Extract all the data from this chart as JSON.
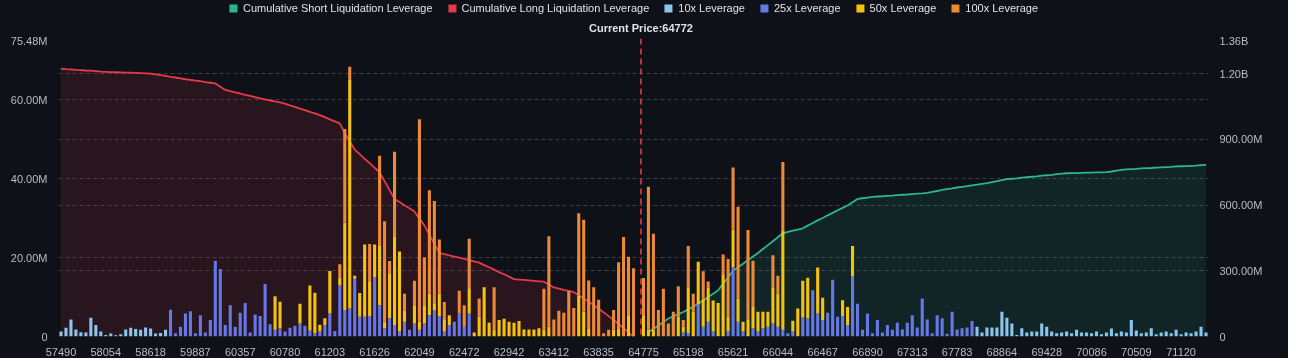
{
  "chart_data": {
    "type": "bar",
    "stacked": true,
    "grid": "y",
    "legend": "top",
    "categories": [
      "57490",
      null,
      null,
      null,
      null,
      null,
      null,
      null,
      null,
      "58054",
      null,
      null,
      null,
      null,
      null,
      null,
      null,
      null,
      "58618",
      null,
      null,
      null,
      null,
      null,
      null,
      null,
      null,
      "59887",
      null,
      null,
      null,
      null,
      null,
      null,
      null,
      null,
      "60357",
      null,
      null,
      null,
      null,
      null,
      null,
      null,
      null,
      "60780",
      null,
      null,
      null,
      null,
      null,
      null,
      null,
      null,
      "61203",
      null,
      null,
      null,
      null,
      null,
      null,
      null,
      null,
      "61626",
      null,
      null,
      null,
      null,
      null,
      null,
      null,
      null,
      "62049",
      null,
      null,
      null,
      null,
      null,
      null,
      null,
      null,
      "62472",
      null,
      null,
      null,
      null,
      null,
      null,
      null,
      null,
      "62942",
      null,
      null,
      null,
      null,
      null,
      null,
      null,
      null,
      "63412",
      null,
      null,
      null,
      null,
      null,
      null,
      null,
      null,
      "63835",
      null,
      null,
      null,
      null,
      null,
      null,
      null,
      null,
      "64775",
      null,
      null,
      null,
      null,
      null,
      null,
      null,
      null,
      "65198",
      null,
      null,
      null,
      null,
      null,
      null,
      null,
      null,
      "65621",
      null,
      null,
      null,
      null,
      null,
      null,
      null,
      null,
      "66044",
      null,
      null,
      null,
      null,
      null,
      null,
      null,
      null,
      "66467",
      null,
      null,
      null,
      null,
      null,
      null,
      null,
      null,
      "66890",
      null,
      null,
      null,
      null,
      null,
      null,
      null,
      null,
      "67313",
      null,
      null,
      null,
      null,
      null,
      null,
      null,
      null,
      "67783",
      null,
      null,
      null,
      null,
      null,
      null,
      null,
      null,
      "68864",
      null,
      null,
      null,
      null,
      null,
      null,
      null,
      null,
      "69428",
      null,
      null,
      null,
      null,
      null,
      null,
      null,
      null,
      "70086",
      null,
      null,
      null,
      null,
      null,
      null,
      null,
      null,
      "70509",
      null,
      null,
      null,
      null,
      null,
      null,
      null,
      null,
      "71120",
      null,
      null,
      null,
      null,
      null
    ],
    "ylim": [
      0,
      75.48
    ],
    "yticks": [
      {
        "value": 0,
        "label": "0"
      },
      {
        "value": 20,
        "label": "20.00M"
      },
      {
        "value": 40,
        "label": "40.00M"
      },
      {
        "value": 60,
        "label": "60.00M"
      },
      {
        "value": 75.48,
        "label": "75.48M"
      }
    ],
    "y2lim": [
      0,
      1360000000.0
    ],
    "y2ticks": [
      {
        "value": 0,
        "label": "0"
      },
      {
        "value": 300000000.0,
        "label": "300.00M"
      },
      {
        "value": 600000000.0,
        "label": "600.00M"
      },
      {
        "value": 900000000.0,
        "label": "900.00M"
      },
      {
        "value": 1200000000.0,
        "label": "1.20B"
      },
      {
        "value": 1360000000.0,
        "label": "1.36B"
      }
    ],
    "annotations": [
      "Current Price:64772"
    ],
    "series": [
      {
        "name": "Cumulative Short Liquidation Leverage",
        "type": "area",
        "axis": "y2",
        "color": "#2bb596",
        "values": [
          null,
          null,
          null,
          null,
          null,
          null,
          null,
          null,
          null,
          null,
          null,
          null,
          null,
          null,
          null,
          null,
          null,
          null,
          null,
          null,
          null,
          null,
          null,
          null,
          null,
          null,
          null,
          null,
          null,
          null,
          null,
          null,
          null,
          null,
          null,
          null,
          null,
          null,
          null,
          null,
          null,
          null,
          null,
          null,
          null,
          null,
          null,
          null,
          null,
          null,
          null,
          null,
          null,
          null,
          null,
          null,
          null,
          null,
          null,
          null,
          null,
          null,
          null,
          null,
          null,
          null,
          null,
          null,
          null,
          null,
          null,
          null,
          null,
          null,
          null,
          null,
          null,
          null,
          null,
          null,
          null,
          null,
          null,
          null,
          null,
          null,
          null,
          null,
          null,
          null,
          null,
          null,
          null,
          null,
          null,
          null,
          null,
          null,
          null,
          null,
          null,
          null,
          null,
          null,
          null,
          null,
          null,
          null,
          null,
          null,
          null,
          null,
          null,
          null,
          null,
          null,
          null,
          null,
          20000000.0,
          35000000.0,
          50000000.0,
          66000000.0,
          82000000.0,
          92000000.0,
          102000000.0,
          112000000.0,
          124000000.0,
          137000000.0,
          149000000.0,
          164000000.0,
          180000000.0,
          195000000.0,
          211000000.0,
          241000000.0,
          270000000.0,
          300000000.0,
          316000000.0,
          332000000.0,
          349000000.0,
          365000000.0,
          381000000.0,
          399000000.0,
          417000000.0,
          435000000.0,
          453000000.0,
          471000000.0,
          477000000.0,
          483000000.0,
          488000000.0,
          494000000.0,
          506000000.0,
          518000000.0,
          530000000.0,
          541000000.0,
          553000000.0,
          564000000.0,
          576000000.0,
          587000000.0,
          598000000.0,
          613000000.0,
          628000000.0,
          631000000.0,
          634000000.0,
          637000000.0,
          639000000.0,
          640000000.0,
          642000000.0,
          643000000.0,
          645000000.0,
          647000000.0,
          648000000.0,
          650000000.0,
          652000000.0,
          653000000.0,
          655000000.0,
          660000000.0,
          664000000.0,
          669000000.0,
          673000000.0,
          676000000.0,
          680000000.0,
          683000000.0,
          686000000.0,
          690000000.0,
          693000000.0,
          697000000.0,
          700000000.0,
          705000000.0,
          709000000.0,
          714000000.0,
          718000000.0,
          720000000.0,
          722000000.0,
          725000000.0,
          727000000.0,
          729000000.0,
          731000000.0,
          734000000.0,
          736000000.0,
          738000000.0,
          741000000.0,
          743000000.0,
          745000000.0,
          746000000.0,
          746000000.0,
          747000000.0,
          748000000.0,
          748000000.0,
          749000000.0,
          749000000.0,
          750000000.0,
          753000000.0,
          757000000.0,
          760000000.0,
          763000000.0,
          764000000.0,
          765000000.0,
          767000000.0,
          768000000.0,
          769000000.0,
          771000000.0,
          772000000.0,
          773000000.0,
          774000000.0,
          776000000.0,
          777000000.0,
          778000000.0,
          779000000.0,
          780000000.0,
          782000000.0,
          783000000.0
        ]
      },
      {
        "name": "Cumulative Long Liquidation Leverage",
        "type": "area",
        "axis": "y2",
        "color": "#e8394a",
        "values": [
          1222000000.0,
          1220000000.0,
          1219000000.0,
          1217000000.0,
          1216000000.0,
          1214000000.0,
          1213000000.0,
          1211000000.0,
          1209000000.0,
          1208000000.0,
          1207000000.0,
          1206000000.0,
          1205000000.0,
          1204000000.0,
          1204000000.0,
          1203000000.0,
          1202000000.0,
          1201000000.0,
          1200000000.0,
          1196000000.0,
          1193000000.0,
          1189000000.0,
          1185000000.0,
          1182000000.0,
          1178000000.0,
          1174000000.0,
          1171000000.0,
          1168000000.0,
          1165000000.0,
          1161000000.0,
          1158000000.0,
          1155000000.0,
          1140000000.0,
          1125000000.0,
          1120000000.0,
          1114000000.0,
          1109000000.0,
          1103000000.0,
          1098000000.0,
          1092000000.0,
          1087000000.0,
          1082000000.0,
          1077000000.0,
          1073000000.0,
          1068000000.0,
          1063000000.0,
          1055000000.0,
          1048000000.0,
          1040000000.0,
          1033000000.0,
          1025000000.0,
          1018000000.0,
          1010000000.0,
          1001000000.0,
          991000000.0,
          982000000.0,
          973000000.0,
          928000000.0,
          890000000.0,
          853000000.0,
          832000000.0,
          811000000.0,
          791000000.0,
          770000000.0,
          749000000.0,
          709000000.0,
          668000000.0,
          628000000.0,
          614000000.0,
          599000000.0,
          585000000.0,
          570000000.0,
          538000000.0,
          507000000.0,
          465000000.0,
          423000000.0,
          381000000.0,
          376000000.0,
          370000000.0,
          365000000.0,
          360000000.0,
          354000000.0,
          348000000.0,
          343000000.0,
          337000000.0,
          326000000.0,
          316000000.0,
          305000000.0,
          294000000.0,
          284000000.0,
          273000000.0,
          262000000.0,
          260000000.0,
          258000000.0,
          256000000.0,
          254000000.0,
          252000000.0,
          250000000.0,
          237000000.0,
          224000000.0,
          219000000.0,
          213000000.0,
          208000000.0,
          202000000.0,
          188000000.0,
          173000000.0,
          159000000.0,
          144000000.0,
          127000000.0,
          110000000.0,
          93000000.0,
          76000000.0,
          57000000.0,
          38000000.0,
          19000000.0,
          0,
          null,
          null,
          null,
          null,
          null,
          null,
          null,
          null,
          null,
          null,
          null,
          null,
          null,
          null,
          null,
          null,
          null,
          null,
          null,
          null,
          null,
          null,
          null,
          null,
          null,
          null,
          null,
          null,
          null,
          null,
          null,
          null,
          null,
          null,
          null,
          null,
          null,
          null,
          null,
          null,
          null,
          null,
          null,
          null,
          null,
          null,
          null,
          null,
          null,
          null,
          null,
          null,
          null,
          null,
          null,
          null,
          null,
          null,
          null,
          null,
          null,
          null,
          null,
          null,
          null,
          null,
          null,
          null,
          null,
          null,
          null,
          null,
          null,
          null,
          null,
          null,
          null,
          null,
          null,
          null,
          null,
          null,
          null,
          null,
          null,
          null,
          null,
          null,
          null,
          null,
          null,
          null,
          null,
          null,
          null,
          null,
          null,
          null,
          null,
          null,
          null,
          null,
          null,
          null,
          null,
          null,
          null,
          null,
          null,
          null,
          null,
          null,
          null,
          null,
          null
        ]
      },
      {
        "name": "10x Leverage",
        "color": "#8cc4ee",
        "values": [
          1.25,
          2.2,
          4.3,
          1.8,
          1.1,
          1.0,
          4.75,
          2.9,
          1.25,
          0.4,
          0.75,
          0.3,
          0.6,
          1.8,
          2.2,
          1.9,
          1.7,
          2.3,
          2.0,
          0.75,
          0.9,
          1.7,
          0,
          0,
          0,
          0,
          0,
          0,
          0,
          0,
          0,
          0,
          0,
          0,
          0,
          0,
          0,
          0,
          0,
          0,
          0,
          0,
          0,
          0,
          0,
          0,
          0,
          0,
          0,
          0,
          0,
          0,
          0,
          0,
          0,
          0,
          0,
          0,
          0,
          0,
          0,
          0,
          0,
          0,
          0,
          0,
          0,
          0,
          0,
          0,
          0,
          0,
          0,
          0,
          0,
          0,
          0,
          0,
          0,
          0,
          0,
          0,
          0,
          0,
          0,
          0,
          0,
          0,
          0,
          0,
          0,
          0,
          0,
          0,
          0,
          0,
          0,
          0,
          0,
          0,
          0,
          0,
          0,
          0,
          0,
          0,
          0,
          0,
          0,
          0,
          0,
          0,
          0,
          0,
          0,
          0,
          0,
          0,
          0,
          0,
          0,
          0,
          0,
          0,
          0,
          0,
          0,
          0,
          0,
          0,
          0,
          0,
          0,
          0,
          0,
          0,
          0,
          0,
          0,
          0,
          0,
          0,
          0,
          0,
          0,
          0,
          0,
          0,
          0,
          0,
          0,
          0,
          0,
          0,
          0,
          0,
          0,
          0,
          0,
          0,
          0,
          0,
          0,
          0,
          0,
          0,
          0,
          0,
          0,
          0,
          0,
          0,
          0,
          0,
          0,
          0,
          0,
          0,
          0,
          0,
          0,
          0,
          0,
          0,
          2.5,
          1.0,
          2.25,
          2.25,
          2.25,
          6.25,
          4.75,
          3.3,
          0.4,
          2.1,
          1.0,
          1.25,
          1.25,
          3.3,
          2.5,
          1.25,
          0.8,
          1.0,
          1.25,
          0.8,
          1.7,
          1.0,
          1.0,
          0.8,
          1.25,
          0.6,
          1.0,
          2.0,
          0.8,
          1.25,
          1.0,
          4.2,
          1.5,
          0.8,
          1.0,
          2.1,
          0.6,
          1.0,
          1.25,
          0.8,
          1.7,
          0.6,
          1.0,
          0.8,
          1.25,
          2.5,
          1.0
        ]
      },
      {
        "name": "25x Leverage",
        "color": "#6677e6",
        "values": [
          0,
          0,
          0,
          0,
          0,
          0,
          0,
          0,
          0,
          0,
          0,
          0,
          0,
          0,
          0,
          0,
          0,
          0,
          0,
          0,
          0,
          0,
          6.8,
          0.8,
          2.5,
          5.8,
          6.4,
          0.8,
          5.4,
          1.0,
          4.2,
          19.2,
          17.1,
          2.9,
          7.9,
          2.5,
          6.0,
          8.5,
          1.0,
          5.6,
          5.2,
          13.3,
          3.1,
          1.7,
          2.1,
          1.25,
          2.2,
          2.7,
          3.3,
          2.7,
          1.5,
          0.8,
          1.25,
          2.9,
          5.8,
          1.4,
          12.9,
          6.7,
          7.1,
          14.6,
          5.0,
          5.0,
          5.2,
          15,
          7.9,
          2.1,
          4.6,
          2.9,
          1.25,
          3.75,
          1.7,
          3.3,
          1.7,
          3.3,
          5.4,
          6.7,
          5.2,
          1.25,
          2.9,
          3.75,
          5.8,
          2.5,
          5.8,
          0,
          0,
          0,
          0,
          0,
          0,
          0,
          0,
          0,
          0,
          0,
          0,
          0,
          0,
          0,
          0,
          0,
          0,
          0,
          0,
          0,
          0,
          0,
          0,
          0,
          0,
          0,
          0,
          0,
          0,
          0,
          0,
          0,
          0,
          0,
          0,
          0,
          0,
          0,
          0,
          0,
          0,
          1.0,
          0.8,
          0,
          8.2,
          2.5,
          3.75,
          1.25,
          0,
          0,
          1.25,
          17.5,
          3.75,
          1.25,
          0,
          2.1,
          1.25,
          2.1,
          2.5,
          3.3,
          2.5,
          1.7,
          0.8,
          1.25,
          0,
          4.8,
          4.6,
          11.7,
          5.8,
          4.2,
          6.0,
          14.4,
          5.0,
          5.2,
          2.9,
          15.2,
          8.3,
          1.7,
          5.8,
          0.8,
          4.2,
          1.0,
          2.9,
          1.7,
          3.5,
          1.8,
          3.5,
          5.4,
          2.25,
          9.6,
          4.3,
          0.8,
          5.4,
          4.6,
          0.7,
          6.25,
          1.8,
          2.1,
          2.3,
          3.9,
          0,
          0,
          0,
          0,
          0,
          0,
          0,
          0,
          0,
          0,
          0,
          0,
          0,
          0,
          0,
          0,
          0,
          0,
          0,
          0,
          0,
          0,
          0,
          0,
          0,
          0,
          0,
          0,
          0,
          0,
          0,
          0,
          0,
          0,
          0,
          0,
          0,
          0,
          0,
          0,
          0,
          0,
          0,
          0,
          0,
          0,
          0
        ]
      },
      {
        "name": "50x Leverage",
        "color": "#f5c30f",
        "values": [
          0,
          0,
          0,
          0,
          0,
          0,
          0,
          0,
          0,
          0,
          0,
          0,
          0,
          0,
          0,
          0,
          0,
          0,
          0,
          0,
          0,
          0,
          0,
          0,
          0,
          0,
          0,
          0,
          0,
          0,
          0,
          0,
          0,
          0,
          0,
          0,
          0,
          0,
          0,
          0,
          0,
          0,
          0,
          8.5,
          6.7,
          0,
          0,
          0,
          5.0,
          0,
          11.4,
          10.3,
          1.7,
          1.7,
          10.8,
          0,
          2.1,
          22.1,
          57.9,
          0.8,
          6.0,
          18.3,
          8.6,
          8.3,
          15,
          1.7,
          11.25,
          22.5,
          20.25,
          2.9,
          0,
          4.6,
          2.1,
          4.6,
          5.4,
          1.7,
          5.6,
          2.9,
          2.5,
          0,
          0,
          0,
          6.25,
          1.0,
          5.0,
          12.5,
          3.5,
          1.7,
          4.2,
          4.5,
          3.75,
          3.5,
          3.9,
          1.8,
          1.8,
          1.8,
          2.1,
          1.7,
          2.5,
          0,
          0,
          0,
          0,
          0,
          10.4,
          6.25,
          2.1,
          0,
          0,
          0,
          0,
          1.7,
          2.1,
          0,
          5.2,
          0,
          0,
          5.2,
          1.7,
          1.7,
          0,
          0,
          0,
          0,
          5.0,
          1.5,
          11.7,
          6.25,
          10.75,
          7.1,
          8.75,
          7.9,
          8.5,
          15.6,
          3.75,
          9.6,
          5.8,
          2.5,
          4.2,
          5.4,
          5.0,
          4.2,
          3.75,
          9.2,
          8.3,
          25,
          0,
          2.75,
          7.1,
          9.3,
          10.25,
          0,
          11.7,
          5.6,
          0,
          0,
          0,
          4.0,
          4.6,
          7.75,
          0,
          0,
          0,
          0,
          0,
          0,
          0,
          0,
          0,
          0,
          0,
          0,
          0,
          0,
          0,
          0,
          0,
          0,
          0,
          0,
          0,
          0,
          0,
          0,
          0,
          0,
          0,
          0,
          0,
          0,
          0,
          0,
          0,
          0,
          0,
          0,
          0,
          0,
          0,
          0,
          0,
          0,
          0,
          0,
          0,
          0,
          0,
          0,
          0,
          0,
          0,
          0,
          0,
          0,
          0,
          0,
          0,
          0,
          0,
          0,
          0,
          0,
          0,
          0,
          0,
          0,
          0,
          0,
          0,
          0,
          0
        ]
      },
      {
        "name": "100x Leverage",
        "color": "#ee8a35",
        "values": [
          0,
          0,
          0,
          0,
          0,
          0,
          0,
          0,
          0,
          0,
          0,
          0,
          0,
          0,
          0,
          0,
          0,
          0,
          0,
          0,
          0,
          0,
          0,
          0,
          0,
          0,
          0,
          0,
          0,
          0,
          0,
          0,
          0,
          0,
          0,
          0,
          0,
          0,
          0,
          0,
          0,
          0,
          0,
          0,
          0,
          0,
          0,
          0,
          0,
          0,
          0,
          0,
          0,
          0,
          0,
          0,
          3.3,
          23.75,
          3.3,
          0,
          0,
          0,
          9.6,
          0,
          22.9,
          25.4,
          3.3,
          21.4,
          0,
          4.2,
          0,
          6.25,
          51.25,
          12.1,
          26.25,
          25.9,
          13.8,
          4.6,
          0,
          0,
          5.8,
          5.4,
          12.7,
          0,
          4.6,
          0,
          0,
          10.8,
          0,
          0,
          0,
          0,
          0,
          0,
          0,
          0,
          0,
          10.4,
          22.9,
          4.3,
          6.5,
          6.0,
          11.5,
          7.25,
          20.8,
          23.3,
          12.1,
          12.5,
          9.3,
          0.8,
          1.7,
          5.0,
          16.7,
          25.2,
          15,
          17.3,
          0,
          9.6,
          36.25,
          24.3,
          6.7,
          12.1,
          3.3,
          6.25,
          7.7,
          1.7,
          10.4,
          4.6,
          0,
          6.9,
          1.4,
          0,
          0,
          5.2,
          14.6,
          15.7,
          23.3,
          0,
          22.75,
          11.7,
          0,
          0,
          0,
          8.1,
          4.6,
          17.5,
          0,
          0,
          0,
          0,
          0,
          0,
          0,
          0,
          0,
          0,
          0,
          0,
          0,
          0,
          0,
          0,
          0,
          0,
          0,
          0,
          0,
          0,
          0,
          0,
          0,
          0,
          0,
          0,
          0,
          0,
          0,
          0,
          0,
          0,
          0,
          0,
          0,
          0,
          0,
          0,
          0,
          0,
          0,
          0,
          0,
          0,
          0,
          0,
          0,
          0,
          0,
          0,
          0,
          0,
          0,
          0,
          0,
          0,
          0,
          0,
          0,
          0,
          0,
          0,
          0,
          0,
          0,
          0,
          0,
          0,
          0,
          0,
          0,
          0,
          0,
          0,
          0,
          0,
          0,
          0,
          0,
          0,
          0,
          0,
          0
        ]
      }
    ]
  }
}
